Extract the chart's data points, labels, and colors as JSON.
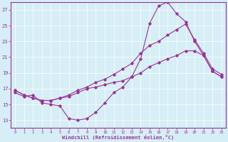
{
  "xlabel": "Windchill (Refroidissement éolien,°C)",
  "background_color": "#d6eef5",
  "grid_color": "#b8dde8",
  "line_color": "#993399",
  "xlim": [
    -0.5,
    23.5
  ],
  "ylim": [
    12,
    28
  ],
  "yticks": [
    13,
    15,
    17,
    19,
    21,
    23,
    25,
    27
  ],
  "xticks": [
    0,
    1,
    2,
    3,
    4,
    5,
    6,
    7,
    8,
    9,
    10,
    11,
    12,
    13,
    14,
    15,
    16,
    17,
    18,
    19,
    20,
    21,
    22,
    23
  ],
  "line1_x": [
    0,
    1,
    2,
    3,
    4,
    5,
    6,
    7,
    8,
    9,
    10,
    11,
    12,
    13,
    14,
    15,
    16,
    17,
    18,
    19,
    20,
    21,
    22,
    23
  ],
  "line1_y": [
    16.5,
    16.0,
    16.2,
    15.2,
    15.0,
    14.8,
    13.2,
    13.0,
    13.2,
    14.0,
    15.2,
    16.5,
    17.2,
    18.5,
    20.8,
    25.3,
    27.5,
    28.0,
    26.5,
    25.5,
    23.0,
    21.2,
    19.2,
    18.5
  ],
  "line2_x": [
    0,
    1,
    2,
    3,
    4,
    5,
    6,
    7,
    8,
    9,
    10,
    11,
    12,
    13,
    14,
    15,
    16,
    17,
    18,
    19,
    20,
    21,
    22,
    23
  ],
  "line2_y": [
    16.8,
    16.2,
    15.8,
    15.5,
    15.5,
    15.8,
    16.2,
    16.8,
    17.2,
    17.8,
    18.2,
    18.8,
    19.5,
    20.2,
    21.5,
    22.5,
    23.0,
    23.8,
    24.5,
    25.2,
    23.2,
    21.5,
    19.5,
    18.8
  ],
  "line3_x": [
    0,
    1,
    2,
    3,
    4,
    5,
    6,
    7,
    8,
    9,
    10,
    11,
    12,
    13,
    14,
    15,
    16,
    17,
    18,
    19,
    20,
    21,
    22,
    23
  ],
  "line3_y": [
    16.8,
    16.2,
    15.8,
    15.5,
    15.5,
    15.8,
    16.0,
    16.5,
    17.0,
    17.2,
    17.5,
    17.8,
    18.0,
    18.5,
    19.0,
    19.8,
    20.3,
    20.8,
    21.2,
    21.8,
    21.8,
    21.2,
    19.2,
    18.5
  ]
}
